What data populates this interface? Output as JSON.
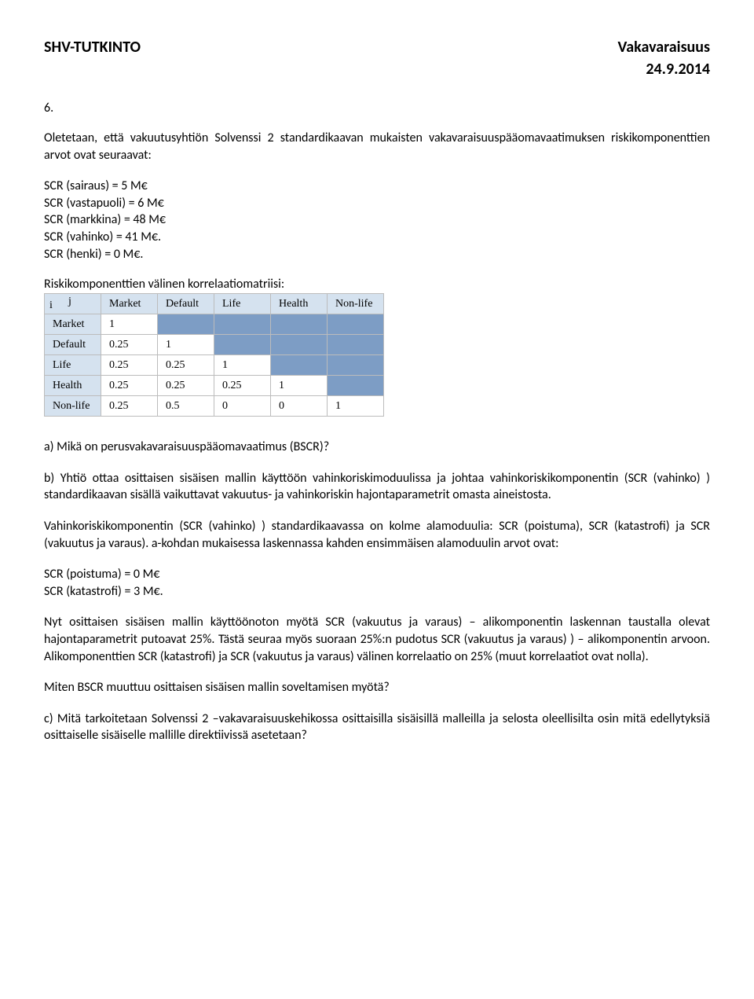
{
  "header": {
    "left": "SHV-TUTKINTO",
    "right": "Vakavaraisuus",
    "date": "24.9.2014"
  },
  "question_number": "6.",
  "intro": "Oletetaan, että vakuutusyhtiön Solvenssi 2 standardikaavan mukaisten vakavaraisuuspääomavaatimuksen riskikomponenttien arvot ovat seuraavat:",
  "scr_lines": {
    "l0": "SCR (sairaus) = 5 M€",
    "l1": "SCR (vastapuoli) = 6 M€",
    "l2": "SCR (markkina) = 48 M€",
    "l3": "SCR (vahinko) = 41 M€.",
    "l4": "SCR (henki) = 0 M€."
  },
  "matrix_label": "Riskikomponenttien välinen korrelaatiomatriisi:",
  "matrix": {
    "columns": [
      "Market",
      "Default",
      "Life",
      "Health",
      "Non-life"
    ],
    "ij": {
      "i": "i",
      "j": "j"
    },
    "rows": [
      {
        "label": "Market",
        "vals": [
          "1",
          "",
          "",
          "",
          ""
        ]
      },
      {
        "label": "Default",
        "vals": [
          "0.25",
          "1",
          "",
          "",
          ""
        ]
      },
      {
        "label": "Life",
        "vals": [
          "0.25",
          "0.25",
          "1",
          "",
          ""
        ]
      },
      {
        "label": "Health",
        "vals": [
          "0.25",
          "0.25",
          "0.25",
          "1",
          ""
        ]
      },
      {
        "label": "Non-life",
        "vals": [
          "0.25",
          "0.5",
          "0",
          "0",
          "1"
        ]
      }
    ],
    "colors": {
      "header_bg": "#d5e2ef",
      "upper_bg": "#7d9dc5",
      "lower_bg": "#ffffff",
      "border": "#bcbcbc"
    }
  },
  "part_a": "a) Mikä on perusvakavaraisuuspääomavaatimus (BSCR)?",
  "part_b_p1": "b) Yhtiö ottaa osittaisen sisäisen mallin käyttöön vahinkoriskimoduulissa ja johtaa vahinkoriskikomponentin (SCR (vahinko) ) standardikaavan sisällä vaikuttavat vakuutus- ja vahinkoriskin hajontaparametrit omasta aineistosta.",
  "part_b_p2": "Vahinkoriskikomponentin (SCR (vahinko) ) standardikaavassa on kolme alamoduulia: SCR (poistuma), SCR (katastrofi) ja SCR (vakuutus ja varaus). a-kohdan mukaisessa laskennassa kahden ensimmäisen alamoduulin arvot ovat:",
  "scr_sub": {
    "s0": "SCR (poistuma) = 0 M€",
    "s1": "SCR (katastrofi) = 3 M€."
  },
  "part_b_p3": "Nyt osittaisen sisäisen mallin käyttöönoton myötä SCR (vakuutus ja varaus) – alikomponentin laskennan taustalla olevat hajontaparametrit putoavat 25%. Tästä seuraa myös suoraan 25%:n pudotus SCR (vakuutus ja varaus) ) – alikomponentin arvoon. Alikomponenttien SCR (katastrofi) ja SCR (vakuutus ja varaus) välinen korrelaatio on 25% (muut korrelaatiot ovat nolla).",
  "part_b_q": "Miten BSCR muuttuu osittaisen sisäisen mallin soveltamisen myötä?",
  "part_c": "c) Mitä tarkoitetaan Solvenssi 2 –vakavaraisuuskehikossa osittaisilla sisäisillä malleilla ja selosta oleellisilta osin mitä edellytyksiä osittaiselle sisäiselle mallille direktiivissä asetetaan?"
}
